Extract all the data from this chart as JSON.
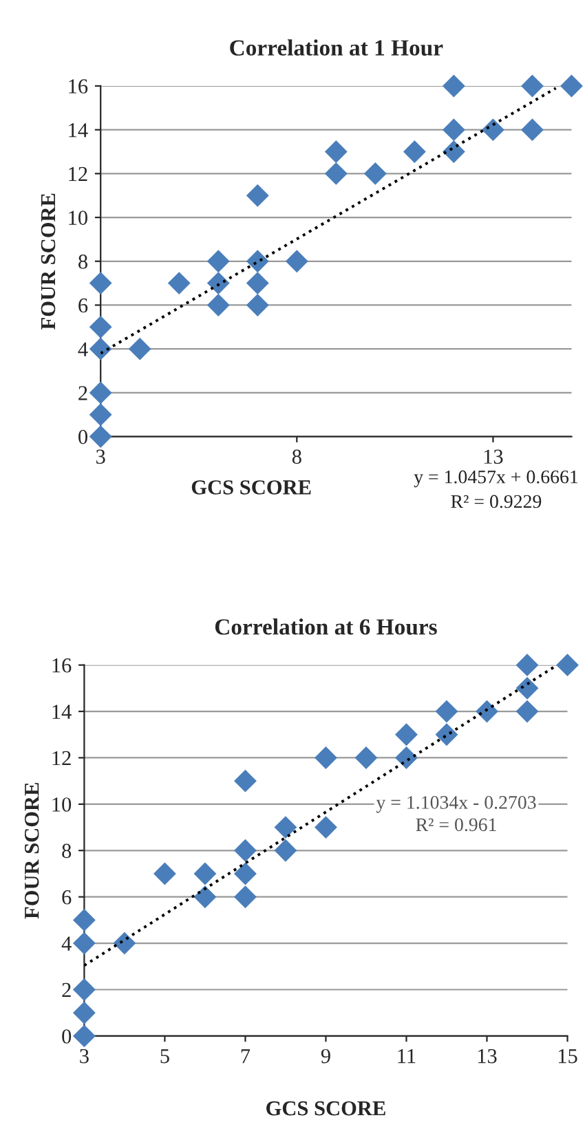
{
  "chart_data": [
    {
      "type": "scatter",
      "title": "Correlation at 1 Hour",
      "xlabel": "GCS SCORE",
      "ylabel": "FOUR SCORE",
      "series": [
        {
          "color": "#4a7ebb",
          "marker": "diamond",
          "x": [
            3,
            3,
            3,
            3,
            3,
            3,
            4,
            5,
            6,
            6,
            6,
            7,
            7,
            7,
            7,
            8,
            9,
            9,
            10,
            11,
            12,
            12,
            12,
            13,
            14,
            14,
            15
          ],
          "values": [
            0,
            1,
            2,
            4,
            5,
            7,
            4,
            7,
            8,
            7,
            6,
            11,
            8,
            7,
            6,
            8,
            13,
            12,
            12,
            13,
            16,
            14,
            13,
            14,
            16,
            14,
            16
          ]
        },
        {
          "type": "line",
          "color": "#000000",
          "line_style": "dotted",
          "marker": "none",
          "x": [
            3,
            14.6
          ],
          "values": [
            3.8,
            15.9
          ]
        }
      ],
      "xlim": [
        3,
        15
      ],
      "xticks": [
        3,
        8,
        13
      ],
      "ylim": [
        0,
        16
      ],
      "yticks": [
        0,
        2,
        4,
        6,
        8,
        10,
        12,
        14,
        16
      ],
      "grid": "y",
      "annotations": [
        "y = 1.0457x + 0.6661",
        "R² = 0.9229"
      ]
    },
    {
      "type": "scatter",
      "title": "Correlation at 6 Hours",
      "xlabel": "GCS SCORE",
      "ylabel": "FOUR SCORE",
      "series": [
        {
          "color": "#4a7ebb",
          "marker": "diamond",
          "x": [
            3,
            3,
            3,
            3,
            3,
            4,
            5,
            6,
            6,
            7,
            7,
            7,
            7,
            8,
            8,
            9,
            9,
            10,
            11,
            11,
            12,
            12,
            13,
            14,
            14,
            14,
            15
          ],
          "values": [
            0,
            1,
            2,
            4,
            5,
            4,
            7,
            7,
            6,
            11,
            8,
            7,
            6,
            9,
            8,
            12,
            9,
            12,
            13,
            12,
            14,
            13,
            14,
            16,
            15,
            14,
            16
          ]
        },
        {
          "type": "line",
          "color": "#000000",
          "line_style": "dotted",
          "marker": "none",
          "x": [
            3,
            14.7
          ],
          "values": [
            3.04,
            15.95
          ]
        }
      ],
      "xlim": [
        3,
        15
      ],
      "xticks": [
        3,
        5,
        7,
        9,
        11,
        13,
        15
      ],
      "ylim": [
        0,
        16
      ],
      "yticks": [
        0,
        2,
        4,
        6,
        8,
        10,
        12,
        14,
        16
      ],
      "grid": "y",
      "annotations": [
        "y = 1.1034x - 0.2703",
        "R² = 0.961"
      ]
    }
  ]
}
